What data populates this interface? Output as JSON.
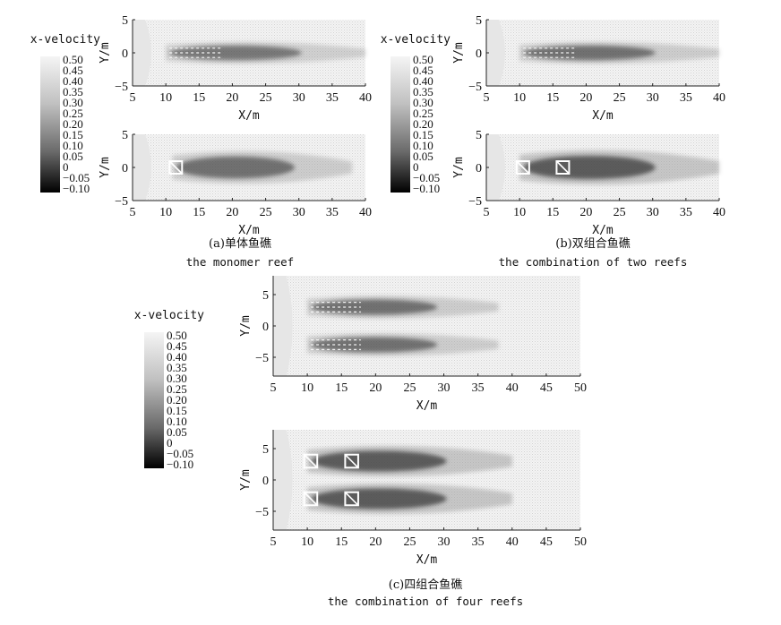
{
  "colorbar": {
    "title": "x-velocity",
    "ticks": [
      "0.50",
      "0.45",
      "0.40",
      "0.35",
      "0.30",
      "0.25",
      "0.20",
      "0.15",
      "0.10",
      "0.05",
      "0",
      "−0.05",
      "−0.10"
    ],
    "min": -0.1,
    "max": 0.5
  },
  "panels": [
    {
      "caption_cn": "(a)单体鱼礁",
      "caption_en": "the monomer reef",
      "plots": [
        {
          "xlabel": "X/m",
          "ylabel": "Y/m",
          "xticks": [
            "5",
            "10",
            "15",
            "20",
            "25",
            "30",
            "35",
            "40"
          ],
          "yticks": [
            "5",
            "0",
            "−5"
          ],
          "xlim": [
            5,
            40
          ],
          "ylim": [
            -5,
            5
          ],
          "reefs": [],
          "wakes": [
            {
              "y": 0,
              "x0": 10,
              "x1": 40,
              "w": 2.0,
              "strength": 0.7,
              "ripples": true
            }
          ]
        },
        {
          "xlabel": "X/m",
          "ylabel": "Y/m",
          "xticks": [
            "5",
            "10",
            "15",
            "20",
            "25",
            "30",
            "35",
            "40"
          ],
          "yticks": [
            "5",
            "0",
            "−5"
          ],
          "xlim": [
            5,
            40
          ],
          "ylim": [
            -5,
            5
          ],
          "reefs": [
            {
              "x": 11.5,
              "y": 0
            }
          ],
          "wakes": [
            {
              "y": 0,
              "x0": 11,
              "x1": 38,
              "w": 3.0,
              "strength": 0.75,
              "ripples": false
            }
          ]
        }
      ]
    },
    {
      "caption_cn": "(b)双组合鱼礁",
      "caption_en": "the combination of two reefs",
      "plots": [
        {
          "xlabel": "X/m",
          "ylabel": "Y/m",
          "xticks": [
            "5",
            "10",
            "15",
            "20",
            "25",
            "30",
            "35",
            "40"
          ],
          "yticks": [
            "5",
            "0",
            "−5"
          ],
          "xlim": [
            5,
            40
          ],
          "ylim": [
            -5,
            5
          ],
          "reefs": [],
          "wakes": [
            {
              "y": 0,
              "x0": 10,
              "x1": 40,
              "w": 2.0,
              "strength": 0.75,
              "ripples": true
            }
          ]
        },
        {
          "xlabel": "X/m",
          "ylabel": "Y/m",
          "xticks": [
            "5",
            "10",
            "15",
            "20",
            "25",
            "30",
            "35",
            "40"
          ],
          "yticks": [
            "5",
            "0",
            "−5"
          ],
          "xlim": [
            5,
            40
          ],
          "ylim": [
            -5,
            5
          ],
          "reefs": [
            {
              "x": 10.5,
              "y": 0
            },
            {
              "x": 16.5,
              "y": 0
            }
          ],
          "wakes": [
            {
              "y": 0,
              "x0": 10,
              "x1": 40,
              "w": 3.2,
              "strength": 0.9,
              "ripples": false
            }
          ]
        }
      ]
    },
    {
      "caption_cn": "(c)四组合鱼礁",
      "caption_en": "the combination of four reefs",
      "plots": [
        {
          "xlabel": "X/m",
          "ylabel": "Y/m",
          "xticks": [
            "5",
            "10",
            "15",
            "20",
            "25",
            "30",
            "35",
            "40",
            "45",
            "50"
          ],
          "yticks": [
            "5",
            "0",
            "−5"
          ],
          "xlim": [
            5,
            50
          ],
          "ylim": [
            -8,
            8
          ],
          "reefs": [],
          "wakes": [
            {
              "y": 3,
              "x0": 10,
              "x1": 38,
              "w": 2.2,
              "strength": 0.75,
              "ripples": true
            },
            {
              "y": -3,
              "x0": 10,
              "x1": 38,
              "w": 2.2,
              "strength": 0.75,
              "ripples": true
            }
          ]
        },
        {
          "xlabel": "X/m",
          "ylabel": "Y/m",
          "xticks": [
            "5",
            "10",
            "15",
            "20",
            "25",
            "30",
            "35",
            "40",
            "45",
            "50"
          ],
          "yticks": [
            "5",
            "0",
            "−5"
          ],
          "xlim": [
            5,
            50
          ],
          "ylim": [
            -8,
            8
          ],
          "reefs": [
            {
              "x": 10.5,
              "y": 3
            },
            {
              "x": 16.5,
              "y": 3
            },
            {
              "x": 10.5,
              "y": -3
            },
            {
              "x": 16.5,
              "y": -3
            }
          ],
          "wakes": [
            {
              "y": 3,
              "x0": 10,
              "x1": 40,
              "w": 3.0,
              "strength": 0.9,
              "ripples": false
            },
            {
              "y": -3,
              "x0": 10,
              "x1": 40,
              "w": 3.0,
              "strength": 0.9,
              "ripples": false
            }
          ]
        }
      ]
    }
  ]
}
